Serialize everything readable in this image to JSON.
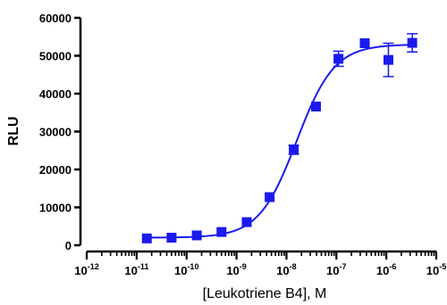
{
  "chart_data": {
    "type": "scatter",
    "title": "",
    "xlabel": "[Leukotriene B4], M",
    "ylabel": "RLU",
    "x_scale": "log",
    "x_lim": [
      1e-12,
      1e-05
    ],
    "y_lim": [
      0,
      60000
    ],
    "x_ticks": [
      {
        "base": "10",
        "exp": "-12"
      },
      {
        "base": "10",
        "exp": "-11"
      },
      {
        "base": "10",
        "exp": "-10"
      },
      {
        "base": "10",
        "exp": "-9"
      },
      {
        "base": "10",
        "exp": "-8"
      },
      {
        "base": "10",
        "exp": "-7"
      },
      {
        "base": "10",
        "exp": "-6"
      },
      {
        "base": "10",
        "exp": "-5"
      }
    ],
    "y_ticks": [
      "0",
      "10000",
      "20000",
      "30000",
      "40000",
      "50000",
      "60000"
    ],
    "y_tick_values": [
      0,
      10000,
      20000,
      30000,
      40000,
      50000,
      60000
    ],
    "grid": false,
    "legend": "none",
    "marker": "square",
    "color": "#1a1aee",
    "series": [
      {
        "x": [
          1.6e-11,
          5e-11,
          1.6e-10,
          5e-10,
          1.6e-09,
          4.6e-09,
          1.4e-08,
          3.9e-08,
          1.1e-07,
          3.7e-07,
          1.1e-06,
          3.3e-06
        ],
        "y": [
          1800,
          2000,
          2600,
          3500,
          6100,
          12700,
          25200,
          36600,
          49200,
          53300,
          48900,
          53400
        ],
        "err": [
          300,
          300,
          300,
          300,
          400,
          600,
          1200,
          600,
          2000,
          600,
          4400,
          2400
        ]
      }
    ],
    "fit": {
      "bottom": 2000,
      "top": 53000,
      "ec50": 1.6e-08,
      "hill": 1.15
    }
  }
}
